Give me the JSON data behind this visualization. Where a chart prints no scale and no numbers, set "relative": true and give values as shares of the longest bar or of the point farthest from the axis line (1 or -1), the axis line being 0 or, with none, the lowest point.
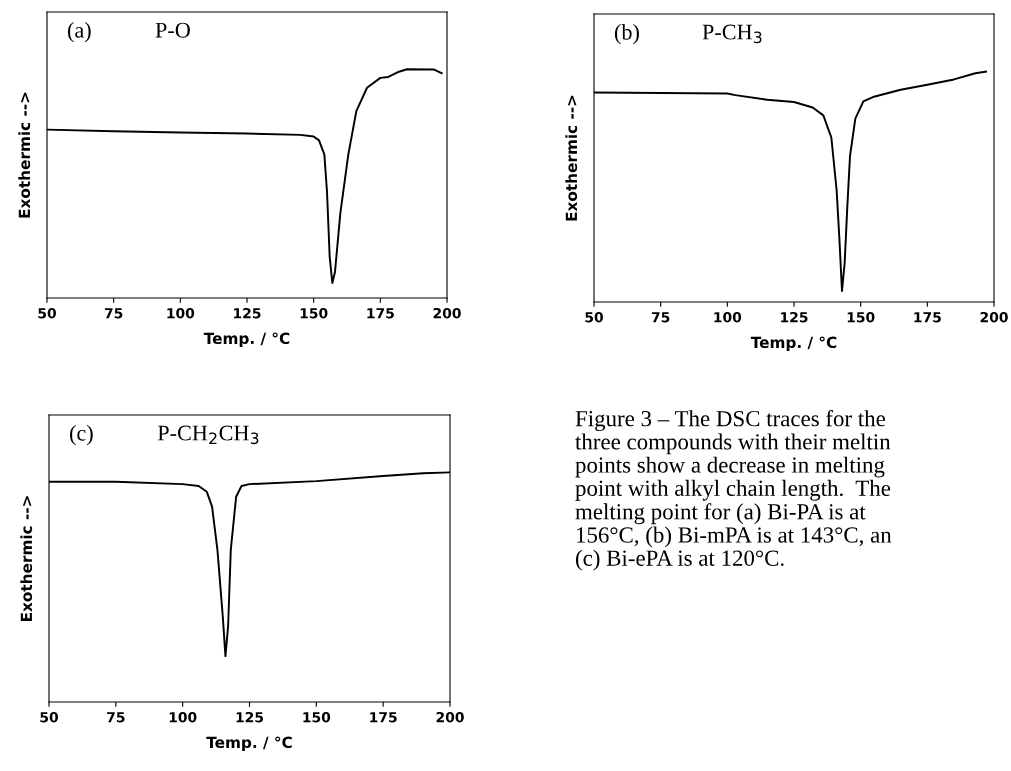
{
  "chart_data": [
    {
      "type": "line",
      "relative": true,
      "xlabel": "Temp. / °C",
      "ylabel": "Exothermic -->",
      "annotations": [
        "(a)",
        "P-O"
      ],
      "xlim": [
        50,
        200
      ],
      "xticks": [
        50,
        75,
        100,
        125,
        150,
        175,
        200
      ],
      "tick_labels": "x",
      "series": [
        {
          "color": "#000000",
          "x": [
            50,
            75,
            100,
            125,
            145,
            150,
            152,
            154,
            155,
            156,
            157,
            158,
            160,
            163,
            166,
            170,
            175,
            178,
            182,
            185,
            195,
            198
          ],
          "values": [
            0.736,
            0.729,
            0.723,
            0.719,
            0.713,
            0.706,
            0.689,
            0.628,
            0.465,
            0.181,
            0.066,
            0.114,
            0.371,
            0.628,
            0.817,
            0.919,
            0.962,
            0.966,
            0.989,
            1.0,
            0.999,
            0.982
          ]
        }
      ]
    },
    {
      "type": "line",
      "relative": true,
      "xlabel": "Temp. / °C",
      "ylabel": "Exothermic -->",
      "annotations": [
        "(b)",
        "P-CH$_{3}$"
      ],
      "xlim": [
        50,
        200
      ],
      "xticks": [
        50,
        75,
        100,
        125,
        150,
        175,
        200
      ],
      "tick_labels": "x",
      "series": [
        {
          "color": "#000000",
          "x": [
            50,
            100,
            103,
            115,
            125,
            132,
            136,
            139,
            141,
            142,
            143,
            144,
            145,
            146,
            148,
            151,
            155,
            165,
            175,
            185,
            193,
            197
          ],
          "values": [
            0.909,
            0.905,
            0.898,
            0.878,
            0.868,
            0.844,
            0.81,
            0.714,
            0.483,
            0.279,
            0.048,
            0.17,
            0.415,
            0.633,
            0.796,
            0.871,
            0.891,
            0.921,
            0.943,
            0.966,
            0.993,
            1.0
          ]
        }
      ]
    },
    {
      "type": "line",
      "relative": true,
      "xlabel": "Temp. / °C",
      "ylabel": "Exothermic -->",
      "annotations": [
        "(c)",
        "P-CH$_{2}$CH$_{3}$"
      ],
      "xlim": [
        50,
        200
      ],
      "xticks": [
        50,
        75,
        100,
        125,
        150,
        175,
        200
      ],
      "tick_labels": "x",
      "series": [
        {
          "color": "#000000",
          "x": [
            50,
            75,
            100,
            106,
            109,
            111,
            113,
            115,
            116,
            117,
            118,
            120,
            122,
            125,
            150,
            175,
            190,
            200
          ],
          "values": [
            0.959,
            0.959,
            0.949,
            0.941,
            0.916,
            0.851,
            0.663,
            0.373,
            0.2,
            0.33,
            0.663,
            0.894,
            0.941,
            0.949,
            0.962,
            0.984,
            0.996,
            1.0
          ]
        }
      ]
    },
    {
      "type": "other",
      "annotations": [
        "Figure 3 – The DSC traces for the\nthree compounds with their meltin\npoints show a decrease in melting\npoint with alkyl chain length.  The\nmelting point for (a) Bi-PA is at\n156°C, (b) Bi-mPA is at 143°C, an\n(c) Bi-ePA is at 120°C."
      ]
    }
  ]
}
